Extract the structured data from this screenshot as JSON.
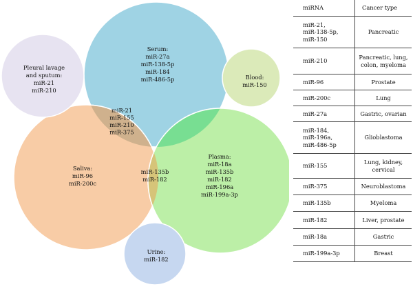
{
  "diagram": {
    "sets": [
      {
        "name": "serum",
        "label": "Serum:",
        "items": [
          "miR-27a",
          "miR-138-5p",
          "miR-184",
          "miR-486-5p"
        ],
        "color": "#9fd3e4"
      },
      {
        "name": "pleural",
        "label": "Pleural lavage and sputum:",
        "label_lines": [
          "Pleural lavage",
          "and sputum:"
        ],
        "items": [
          "miR-21",
          "miR-210"
        ],
        "color": "#e7e3f1"
      },
      {
        "name": "blood",
        "label": "Blood:",
        "items": [
          "miR-150"
        ],
        "color": "#dbeab9"
      },
      {
        "name": "saliva",
        "label": "Saliva:",
        "items": [
          "miR-96",
          "miR-200c"
        ],
        "color": "#f8cca6"
      },
      {
        "name": "plasma",
        "label": "Plasma:",
        "items": [
          "miR-18a",
          "miR-135b",
          "miR-182",
          "miR-196a",
          "miR-199a-3p"
        ],
        "color": "#bcefa7"
      },
      {
        "name": "urine",
        "label": "Urine:",
        "items": [
          "miR-182"
        ],
        "color": "#c6d7f0"
      }
    ],
    "overlaps": [
      {
        "name": "serum-saliva",
        "items": [
          "miR-21",
          "miR-155",
          "miR-210",
          "miR-375"
        ],
        "color": "#cfb18d"
      },
      {
        "name": "saliva-plasma",
        "items": [
          "miR-135b",
          "miR-182"
        ],
        "color": "#d6c479"
      },
      {
        "name": "serum-plasma",
        "color": "#78de92"
      },
      {
        "name": "serum-saliva-plasma",
        "color": "#b6ae6a"
      }
    ]
  },
  "table": {
    "header": [
      "miRNA",
      "Cancer type"
    ],
    "rows": [
      {
        "mirna_lines": [
          "miR-21,",
          "miR-138-5p,",
          "miR-150"
        ],
        "cancer_lines": [
          "Pancreatic"
        ]
      },
      {
        "mirna_lines": [
          "miR-210"
        ],
        "cancer_lines": [
          "Pancreatic, lung,",
          "colon, myeloma"
        ]
      },
      {
        "mirna_lines": [
          "miR-96"
        ],
        "cancer_lines": [
          "Prostate"
        ]
      },
      {
        "mirna_lines": [
          "miR-200c"
        ],
        "cancer_lines": [
          "Lung"
        ]
      },
      {
        "mirna_lines": [
          "miR-27a"
        ],
        "cancer_lines": [
          "Gastric, ovarian"
        ]
      },
      {
        "mirna_lines": [
          "miR-184,",
          "miR-196a,",
          "miR-486-5p"
        ],
        "cancer_lines": [
          "Glioblastoma"
        ]
      },
      {
        "mirna_lines": [
          "miR-155"
        ],
        "cancer_lines": [
          "Lung, kidney,",
          "cervical"
        ]
      },
      {
        "mirna_lines": [
          "miR-375"
        ],
        "cancer_lines": [
          "Neuroblastoma"
        ]
      },
      {
        "mirna_lines": [
          "miR-135b"
        ],
        "cancer_lines": [
          "Myeloma"
        ]
      },
      {
        "mirna_lines": [
          "miR-182"
        ],
        "cancer_lines": [
          "Liver, prostate"
        ]
      },
      {
        "mirna_lines": [
          "miR-18a"
        ],
        "cancer_lines": [
          "Gastric"
        ]
      },
      {
        "mirna_lines": [
          "miR-199a-3p"
        ],
        "cancer_lines": [
          "Breast"
        ]
      }
    ]
  }
}
